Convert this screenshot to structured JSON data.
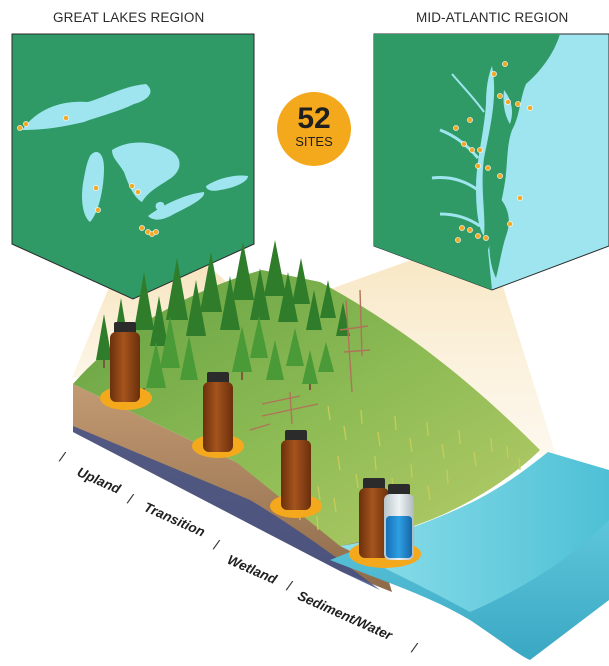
{
  "regions": {
    "great_lakes": {
      "label": "GREAT LAKES REGION"
    },
    "mid_atlantic": {
      "label": "MID-ATLANTIC REGION"
    }
  },
  "sites": {
    "count": "52",
    "label": "SITES"
  },
  "zones": [
    {
      "label": "Upland"
    },
    {
      "label": "Transition"
    },
    {
      "label": "Wetland"
    },
    {
      "label": "Sediment/Water"
    }
  ],
  "separator": "/",
  "colors": {
    "map_land": "#2e9a65",
    "map_water": "#9fe5f0",
    "site_dot": "#f3a928",
    "badge": "#f4a91d",
    "bottle_amber": "#8a4214",
    "bottle_clear": "#c9d2d6",
    "water_sample": "#1f86cf",
    "ocean": "#57c5d9",
    "soil": "#b58a64",
    "grass": "#7cb24a"
  }
}
